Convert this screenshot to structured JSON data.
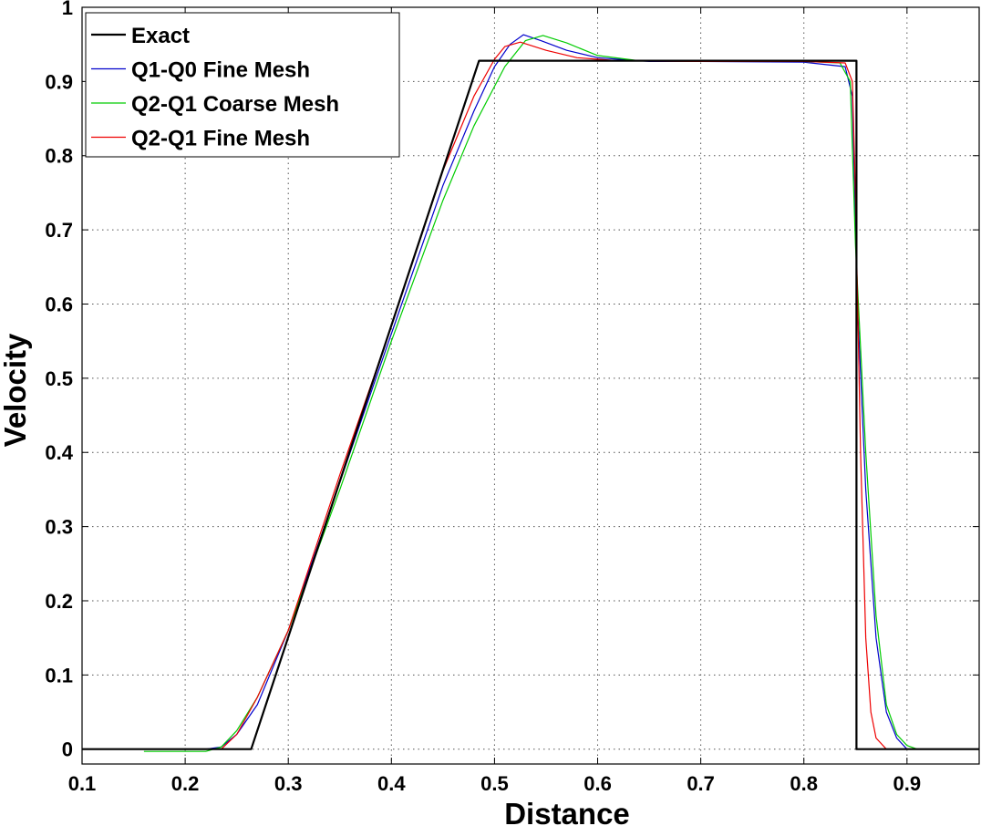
{
  "chart_data": {
    "type": "line",
    "xlabel": "Distance",
    "ylabel": "Velocity",
    "xlim": [
      0.1,
      0.97
    ],
    "ylim": [
      -0.02,
      1
    ],
    "grid": true,
    "legend_position": "top-left",
    "xticks": [
      "0.1",
      "0.2",
      "0.3",
      "0.4",
      "0.5",
      "0.6",
      "0.7",
      "0.8",
      "0.9"
    ],
    "yticks": [
      "0",
      "0.1",
      "0.2",
      "0.3",
      "0.4",
      "0.5",
      "0.6",
      "0.7",
      "0.8",
      "0.9",
      "1"
    ],
    "series": [
      {
        "name": "Exact",
        "color": "#000000",
        "x": [
          0.1,
          0.264,
          0.485,
          0.851,
          0.851,
          0.97
        ],
        "y": [
          0,
          0,
          0.928,
          0.928,
          0,
          0
        ]
      },
      {
        "name": "Q1-Q0 Fine Mesh",
        "color": "#0000cc",
        "x": [
          0.1,
          0.22,
          0.235,
          0.25,
          0.27,
          0.3,
          0.35,
          0.4,
          0.45,
          0.48,
          0.5,
          0.515,
          0.528,
          0.545,
          0.57,
          0.6,
          0.65,
          0.7,
          0.8,
          0.84,
          0.847,
          0.852,
          0.86,
          0.87,
          0.88,
          0.89,
          0.9,
          0.97
        ],
        "y": [
          0,
          0,
          0.003,
          0.02,
          0.06,
          0.16,
          0.36,
          0.56,
          0.76,
          0.86,
          0.92,
          0.95,
          0.963,
          0.955,
          0.942,
          0.932,
          0.927,
          0.927,
          0.926,
          0.92,
          0.88,
          0.6,
          0.35,
          0.15,
          0.05,
          0.015,
          0,
          0
        ]
      },
      {
        "name": "Q2-Q1 Coarse Mesh",
        "color": "#00cc00",
        "x": [
          0.16,
          0.22,
          0.235,
          0.25,
          0.27,
          0.3,
          0.35,
          0.4,
          0.45,
          0.48,
          0.51,
          0.53,
          0.547,
          0.57,
          0.6,
          0.64,
          0.7,
          0.8,
          0.835,
          0.845,
          0.85,
          0.86,
          0.87,
          0.88,
          0.89,
          0.9,
          0.91
        ],
        "y": [
          -0.003,
          -0.003,
          0.003,
          0.025,
          0.07,
          0.16,
          0.35,
          0.55,
          0.74,
          0.84,
          0.92,
          0.955,
          0.962,
          0.952,
          0.935,
          0.928,
          0.927,
          0.927,
          0.925,
          0.9,
          0.68,
          0.4,
          0.18,
          0.06,
          0.02,
          0.005,
          0
        ]
      },
      {
        "name": "Q2-Q1 Fine Mesh",
        "color": "#ee0000",
        "x": [
          0.1,
          0.235,
          0.25,
          0.27,
          0.3,
          0.35,
          0.4,
          0.45,
          0.48,
          0.5,
          0.51,
          0.525,
          0.55,
          0.58,
          0.62,
          0.7,
          0.8,
          0.84,
          0.847,
          0.85,
          0.855,
          0.86,
          0.865,
          0.87,
          0.88,
          0.97
        ],
        "y": [
          0,
          0,
          0.02,
          0.07,
          0.16,
          0.37,
          0.57,
          0.78,
          0.88,
          0.93,
          0.947,
          0.953,
          0.942,
          0.932,
          0.928,
          0.927,
          0.927,
          0.925,
          0.9,
          0.75,
          0.4,
          0.15,
          0.05,
          0.015,
          0,
          0
        ]
      }
    ]
  }
}
